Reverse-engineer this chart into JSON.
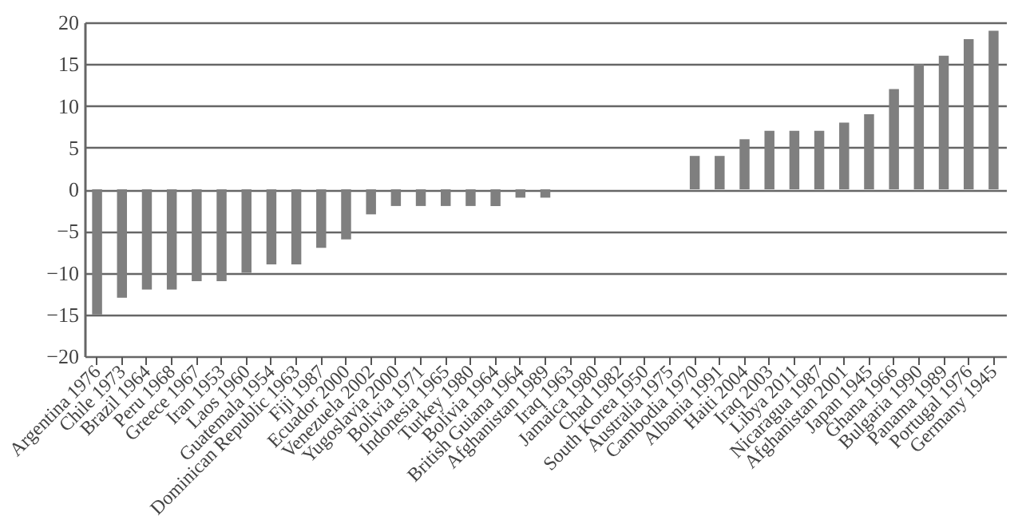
{
  "chart_data": {
    "type": "bar",
    "categories": [
      "Argentina 1976",
      "Chile 1973",
      "Brazil 1964",
      "Peru 1968",
      "Greece 1967",
      "Iran 1953",
      "Laos 1960",
      "Guatemala 1954",
      "Dominican Republic 1963",
      "Fiji 1987",
      "Ecuador 2000",
      "Venezuela 2002",
      "Yugoslavia 2000",
      "Bolivia 1971",
      "Indonesia 1965",
      "Turkey 1980",
      "Bolivia 1964",
      "British Guiana 1964",
      "Afghanistan 1989",
      "Iraq 1963",
      "Jamaica 1980",
      "Chad 1982",
      "South Korea 1950",
      "Australia 1975",
      "Cambodia 1970",
      "Albania 1991",
      "Haiti 2004",
      "Iraq 2003",
      "Libya 2011",
      "Nicaragua 1987",
      "Afghanistan 2001",
      "Japan 1945",
      "Ghana 1966",
      "Bulgaria 1990",
      "Panama 1989",
      "Portugal 1976",
      "Germany 1945"
    ],
    "values": [
      -15,
      -13,
      -12,
      -12,
      -11,
      -11,
      -10,
      -9,
      -9,
      -7,
      -6,
      -3,
      -2,
      -2,
      -2,
      -2,
      -2,
      -1,
      -1,
      0,
      0,
      0,
      0,
      0,
      4,
      4,
      6,
      7,
      7,
      7,
      8,
      9,
      12,
      15,
      16,
      18,
      19
    ],
    "color": "#7f7f7f",
    "ylim": [
      -20,
      20
    ],
    "yticks": [
      -20,
      -15,
      -10,
      -5,
      0,
      5,
      10,
      15,
      20
    ],
    "grid": "y"
  }
}
